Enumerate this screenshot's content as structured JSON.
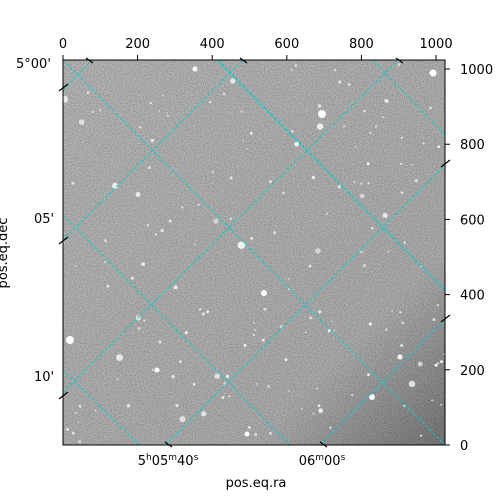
{
  "chart_data": {
    "type": "image",
    "description_free": true,
    "xlabel": "pos.eq.ra",
    "ylabel": "pos.eq.dec",
    "pixel_axes": {
      "x": {
        "range": [
          0,
          1024
        ],
        "ticks": [
          0,
          200,
          400,
          600,
          800,
          1000
        ],
        "labels": [
          "0",
          "200",
          "400",
          "600",
          "800",
          "1000"
        ]
      },
      "y": {
        "range": [
          0,
          1024
        ],
        "ticks": [
          0,
          200,
          400,
          600,
          800,
          1000
        ],
        "labels": [
          "0",
          "200",
          "400",
          "600",
          "800",
          "1000"
        ]
      }
    },
    "world_axes": {
      "dec": {
        "labels": [
          "5°00'",
          "05'",
          "10'"
        ]
      },
      "ra": {
        "labels": [
          "5h05m40s",
          "06m00s"
        ]
      }
    },
    "grid": true,
    "grid_color": "#00d0d0",
    "image_colormap": "gray"
  }
}
